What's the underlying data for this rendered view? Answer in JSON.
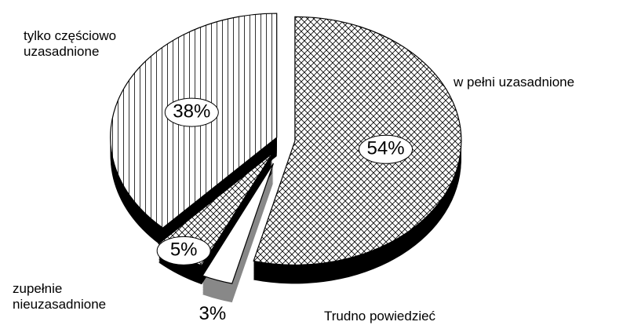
{
  "chart_data": {
    "type": "pie",
    "categories": [
      "w pełni uzasadnione",
      "Trudno powiedzieć",
      "zupełnie nieuzasadnione",
      "tylko częściowo uzasadnione"
    ],
    "values": [
      54,
      3,
      5,
      38
    ],
    "value_labels": [
      "54%",
      "3%",
      "5%",
      "38%"
    ],
    "colors": [
      "#ffffff",
      "#ffffff",
      "#ffffff",
      "#ffffff"
    ],
    "patterns": [
      "crosshatch",
      "none",
      "crosshatch",
      "vertical"
    ]
  }
}
